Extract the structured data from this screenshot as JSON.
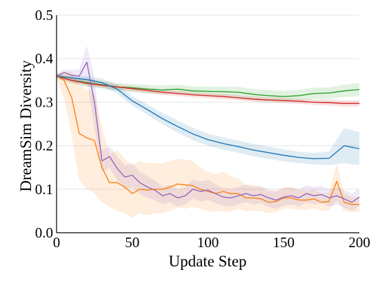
{
  "chart_data": {
    "type": "line",
    "title": "",
    "xlabel": "Update Step",
    "ylabel": "DreamSim Diversity",
    "xlim": [
      0,
      200
    ],
    "ylim": [
      0,
      0.5
    ],
    "xticks": [
      0,
      50,
      100,
      150,
      200
    ],
    "xtick_labels": [
      "0",
      "50",
      "100",
      "150",
      "200"
    ],
    "yticks": [
      0,
      0.1,
      0.2,
      0.3,
      0.4,
      0.5
    ],
    "ytick_labels": [
      "0.0",
      "0.1",
      "0.2",
      "0.3",
      "0.4",
      "0.5"
    ],
    "grid": true,
    "legend": false,
    "series": [
      {
        "color": "#2ca02c",
        "x": [
          0,
          10,
          20,
          30,
          40,
          50,
          60,
          70,
          80,
          90,
          100,
          110,
          120,
          130,
          140,
          150,
          160,
          170,
          180,
          190,
          200
        ],
        "y": [
          0.36,
          0.35,
          0.345,
          0.34,
          0.335,
          0.333,
          0.33,
          0.328,
          0.33,
          0.326,
          0.325,
          0.324,
          0.323,
          0.318,
          0.315,
          0.313,
          0.315,
          0.32,
          0.321,
          0.326,
          0.329
        ],
        "lower": [
          0.355,
          0.343,
          0.336,
          0.331,
          0.326,
          0.324,
          0.32,
          0.318,
          0.32,
          0.316,
          0.314,
          0.313,
          0.311,
          0.306,
          0.302,
          0.3,
          0.302,
          0.307,
          0.308,
          0.312,
          0.314
        ],
        "upper": [
          0.365,
          0.357,
          0.354,
          0.349,
          0.344,
          0.342,
          0.34,
          0.338,
          0.34,
          0.336,
          0.336,
          0.335,
          0.335,
          0.33,
          0.328,
          0.326,
          0.328,
          0.333,
          0.334,
          0.34,
          0.344
        ]
      },
      {
        "color": "#d62728",
        "x": [
          0,
          10,
          20,
          30,
          40,
          50,
          60,
          70,
          80,
          90,
          100,
          110,
          120,
          130,
          140,
          150,
          160,
          170,
          180,
          190,
          200
        ],
        "y": [
          0.36,
          0.35,
          0.343,
          0.339,
          0.335,
          0.331,
          0.327,
          0.323,
          0.32,
          0.317,
          0.315,
          0.313,
          0.31,
          0.307,
          0.305,
          0.304,
          0.302,
          0.3,
          0.299,
          0.297,
          0.297
        ],
        "lower": [
          0.357,
          0.345,
          0.337,
          0.333,
          0.329,
          0.325,
          0.321,
          0.317,
          0.314,
          0.311,
          0.309,
          0.307,
          0.304,
          0.301,
          0.299,
          0.298,
          0.296,
          0.294,
          0.292,
          0.29,
          0.29
        ],
        "upper": [
          0.363,
          0.355,
          0.349,
          0.345,
          0.341,
          0.337,
          0.333,
          0.329,
          0.326,
          0.323,
          0.321,
          0.319,
          0.316,
          0.313,
          0.311,
          0.31,
          0.308,
          0.306,
          0.306,
          0.304,
          0.304
        ]
      },
      {
        "color": "#1f77b4",
        "x": [
          0,
          10,
          20,
          30,
          40,
          50,
          60,
          70,
          80,
          90,
          100,
          110,
          120,
          130,
          140,
          150,
          160,
          170,
          180,
          190,
          200
        ],
        "y": [
          0.36,
          0.356,
          0.352,
          0.345,
          0.33,
          0.303,
          0.283,
          0.262,
          0.244,
          0.227,
          0.214,
          0.205,
          0.198,
          0.19,
          0.184,
          0.178,
          0.173,
          0.17,
          0.171,
          0.2,
          0.193
        ],
        "lower": [
          0.357,
          0.35,
          0.344,
          0.336,
          0.32,
          0.292,
          0.271,
          0.249,
          0.23,
          0.213,
          0.2,
          0.191,
          0.184,
          0.176,
          0.17,
          0.164,
          0.16,
          0.157,
          0.155,
          0.16,
          0.155
        ],
        "upper": [
          0.363,
          0.362,
          0.36,
          0.354,
          0.34,
          0.314,
          0.295,
          0.275,
          0.258,
          0.241,
          0.228,
          0.219,
          0.212,
          0.204,
          0.198,
          0.192,
          0.186,
          0.183,
          0.187,
          0.24,
          0.231
        ]
      },
      {
        "color": "#ff7f0e",
        "x": [
          0,
          5,
          10,
          15,
          20,
          25,
          30,
          35,
          40,
          45,
          50,
          55,
          60,
          65,
          70,
          75,
          80,
          85,
          90,
          95,
          100,
          105,
          110,
          115,
          120,
          125,
          130,
          135,
          140,
          145,
          150,
          155,
          160,
          165,
          170,
          175,
          180,
          185,
          190,
          195,
          200
        ],
        "y": [
          0.36,
          0.35,
          0.31,
          0.228,
          0.218,
          0.212,
          0.15,
          0.115,
          0.115,
          0.105,
          0.09,
          0.1,
          0.098,
          0.1,
          0.1,
          0.105,
          0.112,
          0.11,
          0.108,
          0.1,
          0.095,
          0.09,
          0.095,
          0.09,
          0.09,
          0.08,
          0.08,
          0.078,
          0.07,
          0.072,
          0.08,
          0.08,
          0.075,
          0.075,
          0.078,
          0.07,
          0.072,
          0.118,
          0.07,
          0.065,
          0.065
        ],
        "lower": [
          0.355,
          0.31,
          0.22,
          0.12,
          0.1,
          0.09,
          0.07,
          0.06,
          0.05,
          0.045,
          0.035,
          0.045,
          0.04,
          0.045,
          0.045,
          0.05,
          0.058,
          0.055,
          0.06,
          0.055,
          0.05,
          0.048,
          0.05,
          0.048,
          0.055,
          0.05,
          0.05,
          0.05,
          0.045,
          0.048,
          0.055,
          0.056,
          0.052,
          0.053,
          0.056,
          0.05,
          0.052,
          0.075,
          0.05,
          0.048,
          0.048
        ],
        "upper": [
          0.365,
          0.37,
          0.37,
          0.34,
          0.33,
          0.32,
          0.24,
          0.18,
          0.19,
          0.17,
          0.155,
          0.165,
          0.16,
          0.16,
          0.16,
          0.165,
          0.17,
          0.168,
          0.165,
          0.15,
          0.14,
          0.135,
          0.14,
          0.13,
          0.125,
          0.11,
          0.11,
          0.105,
          0.095,
          0.097,
          0.105,
          0.104,
          0.098,
          0.097,
          0.1,
          0.09,
          0.092,
          0.16,
          0.09,
          0.082,
          0.082
        ]
      },
      {
        "color": "#9467bd",
        "x": [
          0,
          5,
          10,
          15,
          20,
          25,
          30,
          35,
          40,
          45,
          50,
          55,
          60,
          65,
          70,
          75,
          80,
          85,
          90,
          95,
          100,
          105,
          110,
          115,
          120,
          125,
          130,
          135,
          140,
          145,
          150,
          155,
          160,
          165,
          170,
          175,
          180,
          185,
          190,
          195,
          200
        ],
        "y": [
          0.36,
          0.368,
          0.362,
          0.36,
          0.392,
          0.3,
          0.165,
          0.175,
          0.148,
          0.128,
          0.132,
          0.115,
          0.105,
          0.098,
          0.085,
          0.09,
          0.08,
          0.085,
          0.1,
          0.095,
          0.098,
          0.09,
          0.082,
          0.08,
          0.085,
          0.09,
          0.085,
          0.088,
          0.08,
          0.075,
          0.082,
          0.085,
          0.08,
          0.09,
          0.085,
          0.088,
          0.08,
          0.085,
          0.078,
          0.07,
          0.082
        ],
        "lower": [
          0.355,
          0.36,
          0.35,
          0.345,
          0.35,
          0.24,
          0.14,
          0.15,
          0.12,
          0.1,
          0.105,
          0.09,
          0.08,
          0.075,
          0.065,
          0.07,
          0.06,
          0.065,
          0.078,
          0.072,
          0.075,
          0.068,
          0.062,
          0.06,
          0.065,
          0.07,
          0.065,
          0.068,
          0.06,
          0.055,
          0.062,
          0.065,
          0.06,
          0.07,
          0.065,
          0.068,
          0.06,
          0.065,
          0.058,
          0.05,
          0.062
        ],
        "upper": [
          0.365,
          0.376,
          0.374,
          0.375,
          0.43,
          0.36,
          0.19,
          0.2,
          0.175,
          0.155,
          0.16,
          0.14,
          0.13,
          0.12,
          0.105,
          0.11,
          0.1,
          0.105,
          0.122,
          0.118,
          0.121,
          0.112,
          0.102,
          0.1,
          0.105,
          0.11,
          0.105,
          0.108,
          0.1,
          0.095,
          0.102,
          0.105,
          0.1,
          0.11,
          0.105,
          0.108,
          0.1,
          0.105,
          0.098,
          0.09,
          0.102
        ]
      }
    ]
  }
}
